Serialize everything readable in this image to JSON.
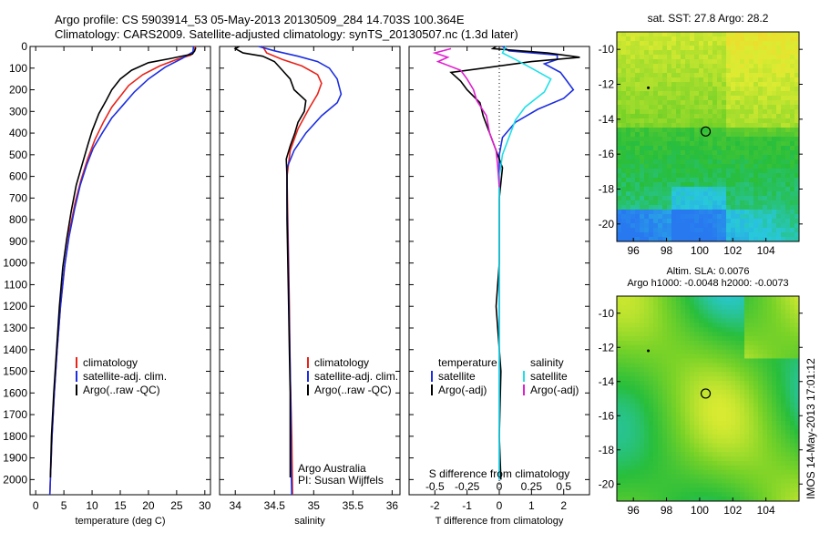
{
  "header": {
    "line1": "Argo profile: CS 5903914_53 05-May-2013 20130509_284 14.703S 100.364E",
    "line2": "Climatology: CARS2009. Satellite-adjusted climatology: synTS_20130507.nc (1.3d later)"
  },
  "colors": {
    "climatology": "#e8231a",
    "satellite": "#1c2ee0",
    "argo": "#000000",
    "sat_salinity": "#1fe0e8",
    "argo_salinity": "#e020d0"
  },
  "chart_data": [
    {
      "type": "line",
      "id": "temperature",
      "xlabel": "temperature (deg C)",
      "ylabel": "",
      "xlim": [
        -1,
        31
      ],
      "ylim": [
        2070,
        0
      ],
      "xticks": [
        0,
        5,
        10,
        15,
        20,
        25,
        30
      ],
      "yticks": [
        0,
        100,
        200,
        300,
        400,
        500,
        600,
        700,
        800,
        900,
        1000,
        1100,
        1200,
        1300,
        1400,
        1500,
        1600,
        1700,
        1800,
        1900,
        2000
      ],
      "legend": [
        "climatology",
        "satellite-adj. clim.",
        "Argo(..raw -QC)"
      ],
      "series": [
        {
          "name": "climatology",
          "color": "#e8231a",
          "points": [
            [
              28.3,
              0
            ],
            [
              28.2,
              20
            ],
            [
              27.5,
              40
            ],
            [
              25,
              60
            ],
            [
              22,
              90
            ],
            [
              19,
              130
            ],
            [
              16.5,
              180
            ],
            [
              15,
              230
            ],
            [
              13.5,
              280
            ],
            [
              12,
              350
            ],
            [
              10.5,
              430
            ],
            [
              9.2,
              520
            ],
            [
              8,
              620
            ],
            [
              7,
              720
            ],
            [
              6,
              850
            ],
            [
              5.2,
              1000
            ],
            [
              4.4,
              1200
            ],
            [
              3.8,
              1400
            ],
            [
              3.3,
              1600
            ],
            [
              2.9,
              1800
            ],
            [
              2.6,
              2000
            ],
            [
              2.5,
              2070
            ]
          ]
        },
        {
          "name": "satellite-adj. clim.",
          "color": "#1c2ee0",
          "points": [
            [
              28,
              0
            ],
            [
              27.9,
              25
            ],
            [
              26,
              55
            ],
            [
              23,
              95
            ],
            [
              20,
              150
            ],
            [
              17.5,
              210
            ],
            [
              15.5,
              270
            ],
            [
              13.5,
              330
            ],
            [
              11.8,
              400
            ],
            [
              10.2,
              470
            ],
            [
              9,
              550
            ],
            [
              7.9,
              640
            ],
            [
              6.9,
              750
            ],
            [
              5.9,
              880
            ],
            [
              5.1,
              1020
            ],
            [
              4.4,
              1200
            ],
            [
              3.8,
              1400
            ],
            [
              3.3,
              1600
            ],
            [
              2.9,
              1800
            ],
            [
              2.6,
              2000
            ],
            [
              2.5,
              2070
            ]
          ]
        },
        {
          "name": "Argo(..raw -QC)",
          "color": "#000000",
          "points": [
            [
              28.4,
              5
            ],
            [
              28.2,
              20
            ],
            [
              27.8,
              35
            ],
            [
              24,
              55
            ],
            [
              20,
              75
            ],
            [
              17,
              110
            ],
            [
              15,
              150
            ],
            [
              13.5,
              200
            ],
            [
              12.5,
              250
            ],
            [
              11.2,
              310
            ],
            [
              10,
              390
            ],
            [
              9.3,
              450
            ],
            [
              8.3,
              540
            ],
            [
              7.2,
              640
            ],
            [
              6.3,
              760
            ],
            [
              5.5,
              890
            ],
            [
              4.8,
              1020
            ],
            [
              4.2,
              1200
            ],
            [
              3.7,
              1400
            ],
            [
              3.2,
              1600
            ],
            [
              2.8,
              1800
            ],
            [
              2.6,
              1990
            ]
          ]
        }
      ]
    },
    {
      "type": "line",
      "id": "salinity",
      "xlabel": "salinity",
      "ylabel": "",
      "xlim": [
        33.8,
        36.1
      ],
      "ylim": [
        2070,
        0
      ],
      "xticks": [
        34,
        34.5,
        35,
        35.5,
        36
      ],
      "legend": [
        "climatology",
        "satellite-adj. clim.",
        "Argo(..raw -QC)"
      ],
      "annotation": [
        "Argo Australia",
        "PI: Susan Wijffels"
      ],
      "series": [
        {
          "name": "climatology",
          "color": "#e8231a",
          "points": [
            [
              34.35,
              0
            ],
            [
              34.4,
              30
            ],
            [
              34.6,
              60
            ],
            [
              34.85,
              90
            ],
            [
              35.05,
              130
            ],
            [
              35.1,
              170
            ],
            [
              35.05,
              220
            ],
            [
              34.95,
              280
            ],
            [
              34.8,
              380
            ],
            [
              34.7,
              480
            ],
            [
              34.66,
              600
            ],
            [
              34.67,
              800
            ],
            [
              34.68,
              1000
            ],
            [
              34.69,
              1200
            ],
            [
              34.7,
              1500
            ],
            [
              34.72,
              1800
            ],
            [
              34.73,
              2070
            ]
          ]
        },
        {
          "name": "satellite-adj. clim.",
          "color": "#1c2ee0",
          "points": [
            [
              34.3,
              0
            ],
            [
              34.5,
              20
            ],
            [
              34.8,
              45
            ],
            [
              35.05,
              70
            ],
            [
              35.2,
              100
            ],
            [
              35.3,
              150
            ],
            [
              35.35,
              220
            ],
            [
              35.3,
              260
            ],
            [
              35.1,
              320
            ],
            [
              34.9,
              400
            ],
            [
              34.75,
              480
            ],
            [
              34.66,
              560
            ],
            [
              34.66,
              700
            ],
            [
              34.67,
              900
            ],
            [
              34.68,
              1100
            ],
            [
              34.69,
              1300
            ],
            [
              34.7,
              1500
            ],
            [
              34.71,
              1700
            ],
            [
              34.71,
              1900
            ],
            [
              34.72,
              2070
            ]
          ]
        },
        {
          "name": "Argo(..raw -QC)",
          "color": "#000000",
          "points": [
            [
              34.05,
              0
            ],
            [
              34.0,
              10
            ],
            [
              34.1,
              30
            ],
            [
              34.35,
              45
            ],
            [
              34.5,
              70
            ],
            [
              34.6,
              110
            ],
            [
              34.7,
              150
            ],
            [
              34.75,
              200
            ],
            [
              34.9,
              250
            ],
            [
              34.88,
              300
            ],
            [
              34.8,
              350
            ],
            [
              34.76,
              400
            ],
            [
              34.7,
              460
            ],
            [
              34.65,
              520
            ],
            [
              34.66,
              600
            ],
            [
              34.66,
              800
            ],
            [
              34.67,
              1000
            ],
            [
              34.68,
              1200
            ],
            [
              34.69,
              1400
            ],
            [
              34.7,
              1600
            ],
            [
              34.7,
              1800
            ],
            [
              34.7,
              1990
            ]
          ]
        }
      ]
    },
    {
      "type": "line",
      "id": "difference",
      "xlabel": "T difference from climatology",
      "xlabel_top": "S difference from climatology",
      "ylabel": "",
      "xlim": [
        -2.8,
        2.8
      ],
      "ylim": [
        2070,
        0
      ],
      "xticks": [
        -2,
        -1,
        0,
        1,
        2
      ],
      "xtick_labels_top": [
        "-0.5",
        "-0.25",
        "0",
        "0.25",
        "0.5"
      ],
      "legend": {
        "temperature_heading": "temperature",
        "salinity_heading": "salinity",
        "satellite": "satellite",
        "argo": "Argo(-adj)"
      },
      "series": [
        {
          "name": "satellite",
          "group": "temperature",
          "color": "#1c2ee0",
          "points": [
            [
              0.1,
              0
            ],
            [
              0.3,
              20
            ],
            [
              1.8,
              40
            ],
            [
              1.8,
              60
            ],
            [
              1.4,
              80
            ],
            [
              1.9,
              120
            ],
            [
              2.1,
              160
            ],
            [
              2.3,
              200
            ],
            [
              2.0,
              240
            ],
            [
              1.2,
              290
            ],
            [
              0.5,
              350
            ],
            [
              0.1,
              420
            ],
            [
              0,
              500
            ],
            [
              0,
              700
            ],
            [
              0,
              1000
            ],
            [
              0,
              1500
            ],
            [
              0,
              2000
            ]
          ]
        },
        {
          "name": "Argo(-adj)",
          "group": "temperature",
          "color": "#000000",
          "points": [
            [
              -0.1,
              0
            ],
            [
              -0.2,
              10
            ],
            [
              1.5,
              30
            ],
            [
              2.5,
              50
            ],
            [
              1.0,
              70
            ],
            [
              -0.5,
              100
            ],
            [
              -1.5,
              120
            ],
            [
              -1.2,
              160
            ],
            [
              -1.0,
              200
            ],
            [
              -0.6,
              260
            ],
            [
              -0.5,
              320
            ],
            [
              -0.3,
              400
            ],
            [
              -0.1,
              480
            ],
            [
              0.1,
              560
            ],
            [
              0,
              700
            ],
            [
              0,
              1000
            ],
            [
              -0.1,
              1200
            ],
            [
              0.05,
              1500
            ],
            [
              0,
              1800
            ],
            [
              0.05,
              2000
            ]
          ]
        },
        {
          "name": "satellite",
          "group": "salinity",
          "color": "#1fe0e8",
          "points": [
            [
              0.2,
              0
            ],
            [
              0.1,
              30
            ],
            [
              0.5,
              60
            ],
            [
              1.0,
              100
            ],
            [
              1.6,
              150
            ],
            [
              1.4,
              210
            ],
            [
              0.8,
              280
            ],
            [
              0.5,
              340
            ],
            [
              0.3,
              420
            ],
            [
              0.1,
              500
            ],
            [
              0,
              600
            ],
            [
              0,
              900
            ],
            [
              0,
              1300
            ],
            [
              0,
              2000
            ]
          ]
        },
        {
          "name": "Argo(-adj)",
          "group": "salinity",
          "color": "#e020d0",
          "points": [
            [
              -1.5,
              10
            ],
            [
              -2.0,
              30
            ],
            [
              -1.6,
              50
            ],
            [
              -1.9,
              70
            ],
            [
              -1.2,
              110
            ],
            [
              -1.0,
              150
            ],
            [
              -0.8,
              200
            ],
            [
              -0.7,
              250
            ],
            [
              -0.4,
              320
            ],
            [
              -0.3,
              400
            ],
            [
              -0.1,
              480
            ],
            [
              -0.05,
              550
            ],
            [
              0,
              650
            ]
          ]
        }
      ]
    },
    {
      "type": "heatmap",
      "id": "sst_map",
      "title": "sat. SST: 27.8 Argo: 28.2",
      "xlim": [
        95,
        106
      ],
      "ylim": [
        -21,
        -9
      ],
      "xticks": [
        96,
        98,
        100,
        102,
        104
      ],
      "yticks": [
        -10,
        -12,
        -14,
        -16,
        -18,
        -20
      ],
      "argo_position": [
        100.364,
        -14.703
      ],
      "point_marker": [
        96.9,
        -12.2
      ]
    },
    {
      "type": "heatmap",
      "id": "sla_map",
      "title_line1": "Altim. SLA: 0.0076",
      "title_line2": "Argo h1000: -0.0048 h2000: -0.0073",
      "xlim": [
        95,
        106
      ],
      "ylim": [
        -21,
        -9
      ],
      "xticks": [
        96,
        98,
        100,
        102,
        104
      ],
      "yticks": [
        -10,
        -12,
        -14,
        -16,
        -18,
        -20
      ],
      "argo_position": [
        100.364,
        -14.703
      ],
      "point_marker": [
        96.9,
        -12.2
      ]
    }
  ],
  "footer": {
    "imos_stamp": "IMOS 14-May-2013 17:01:12"
  }
}
